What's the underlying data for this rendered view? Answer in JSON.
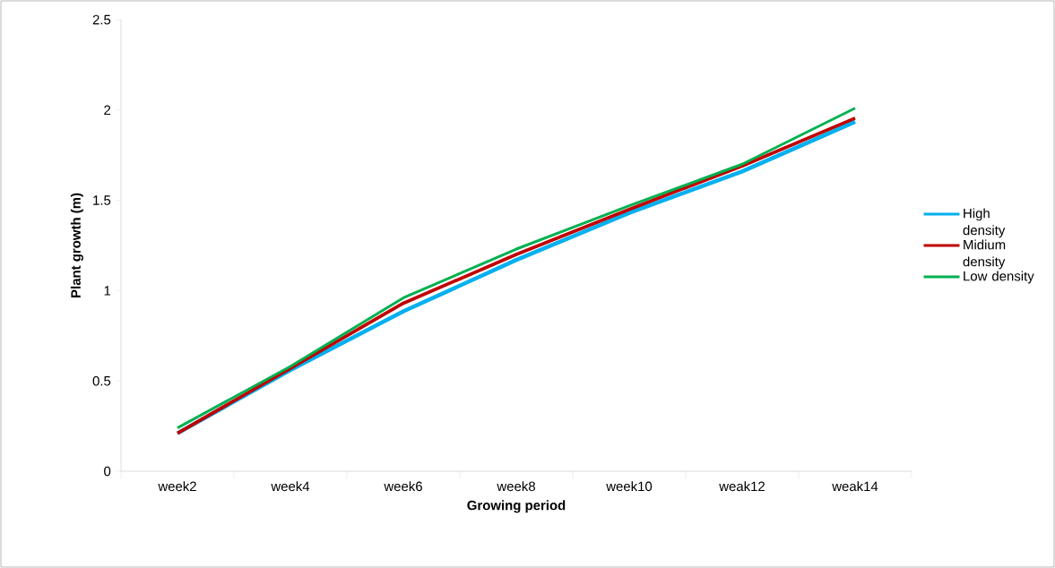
{
  "chart_data": {
    "type": "line",
    "xlabel": "Growing period",
    "ylabel": "Plant growth (m)",
    "categories": [
      "week2",
      "week4",
      "week6",
      "week8",
      "week10",
      "weak12",
      "weak14"
    ],
    "series": [
      {
        "name": "High density",
        "color": "#00b0f0",
        "values": [
          0.21,
          0.56,
          0.885,
          1.17,
          1.43,
          1.66,
          1.935
        ]
      },
      {
        "name": "Midium density",
        "color": "#c00000",
        "values": [
          0.21,
          0.57,
          0.93,
          1.2,
          1.45,
          1.69,
          1.955
        ]
      },
      {
        "name": "Low density",
        "color": "#00b050",
        "values": [
          0.24,
          0.58,
          0.96,
          1.23,
          1.47,
          1.7,
          2.01
        ]
      }
    ],
    "ylim": [
      0,
      2.5
    ],
    "yticks": [
      0,
      0.5,
      1,
      1.5,
      2,
      2.5
    ],
    "legend": "right",
    "grid": false,
    "marker": "none",
    "line_style": "solid"
  }
}
